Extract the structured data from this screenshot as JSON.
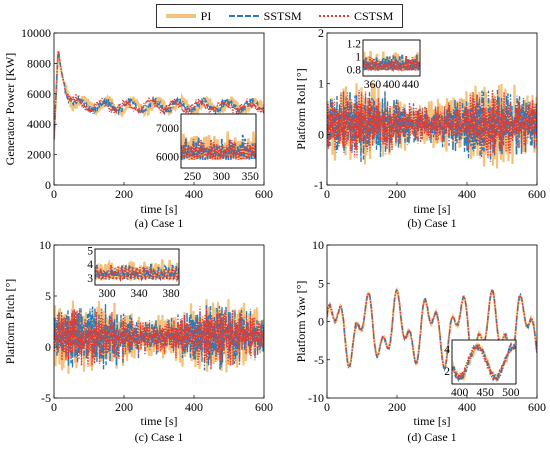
{
  "legend": [
    {
      "name": "PI",
      "color": "#f4c27a",
      "dash": "solid"
    },
    {
      "name": "SSTSM",
      "color": "#2b7bb9",
      "dash": "dashdot"
    },
    {
      "name": "CSTSM",
      "color": "#e63b2e",
      "dash": "dotted"
    }
  ],
  "chart_data": [
    {
      "type": "line",
      "caption": "(a) Case 1",
      "xlabel": "time [s]",
      "ylabel": "Generator Power [KW]",
      "xlim": [
        0,
        600
      ],
      "ylim": [
        0,
        10000
      ],
      "xticks": [
        0,
        200,
        400,
        600
      ],
      "yticks": [
        0,
        2000,
        4000,
        6000,
        8000,
        10000
      ],
      "ytick_labels": [
        "0",
        "2000",
        "4000",
        "6000",
        "8000",
        "10000"
      ],
      "series_shape": {
        "start": 3000,
        "peak_t": 12,
        "peak": 9000,
        "settle": 5200,
        "amp": 450,
        "freq": 0.09
      },
      "inset": {
        "xlim": [
          230,
          360
        ],
        "ylim": [
          5600,
          7500
        ],
        "xticks": [
          250,
          300,
          350
        ],
        "yticks": [
          6000,
          7000
        ],
        "xtick_labels": [
          "250",
          "300",
          "350"
        ],
        "ytick_labels": [
          "6000",
          "7000"
        ]
      }
    },
    {
      "type": "line",
      "caption": "(b) Case 1",
      "xlabel": "time [s]",
      "ylabel": "Platform Roll [°]",
      "xlim": [
        0,
        600
      ],
      "ylim": [
        -1,
        2
      ],
      "xticks": [
        0,
        200,
        400,
        600
      ],
      "yticks": [
        -1,
        0,
        1,
        2
      ],
      "ytick_labels": [
        "-1",
        "0",
        "1",
        "2"
      ],
      "series_shape": {
        "center": 0.2,
        "amp": 0.55,
        "freq": 0.45
      },
      "inset": {
        "xlim": [
          340,
          460
        ],
        "ylim": [
          0.7,
          1.25
        ],
        "xticks": [
          360,
          400,
          440
        ],
        "yticks": [
          0.8,
          1,
          1.2
        ],
        "xtick_labels": [
          "360",
          "400",
          "440"
        ],
        "ytick_labels": [
          "0.8",
          "1",
          "1.2"
        ]
      }
    },
    {
      "type": "line",
      "caption": "(c) Case 1",
      "xlabel": "time [s]",
      "ylabel": "Platform Pitch [°]",
      "xlim": [
        0,
        600
      ],
      "ylim": [
        -5,
        10
      ],
      "xticks": [
        0,
        200,
        400,
        600
      ],
      "yticks": [
        -5,
        0,
        5,
        10
      ],
      "ytick_labels": [
        "-5",
        "0",
        "5",
        "10"
      ],
      "series_shape": {
        "center": 1,
        "amp": 2.5,
        "freq": 0.45
      },
      "inset": {
        "xlim": [
          285,
          390
        ],
        "ylim": [
          2.5,
          5.1
        ],
        "xticks": [
          300,
          340,
          380
        ],
        "yticks": [
          3,
          4,
          5
        ],
        "xtick_labels": [
          "300",
          "340",
          "380"
        ],
        "ytick_labels": [
          "3",
          "4",
          "5"
        ]
      }
    },
    {
      "type": "line",
      "caption": "(d) Case 1",
      "xlabel": "time [s]",
      "ylabel": "Platform Yaw [°]",
      "xlim": [
        0,
        600
      ],
      "ylim": [
        -10,
        10
      ],
      "xticks": [
        0,
        200,
        400,
        600
      ],
      "yticks": [
        -10,
        -5,
        0,
        5,
        10
      ],
      "ytick_labels": [
        "-10",
        "-5",
        "0",
        "5",
        "10"
      ],
      "series_shape": {
        "center": -1,
        "amp": 5,
        "freq": 0.07
      },
      "inset": {
        "xlim": [
          385,
          510
        ],
        "ylim": [
          0.8,
          4.8
        ],
        "xticks": [
          400,
          450,
          500
        ],
        "yticks": [
          2,
          4
        ],
        "xtick_labels": [
          "400",
          "450",
          "500"
        ],
        "ytick_labels": [
          "2",
          "4"
        ]
      }
    }
  ]
}
